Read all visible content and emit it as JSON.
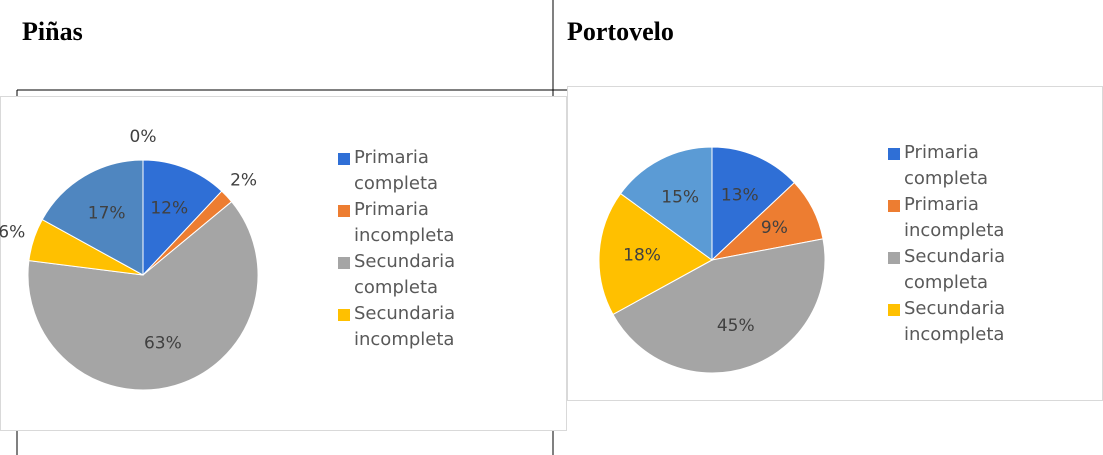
{
  "chart_data": [
    {
      "type": "pie",
      "title": "Piñas",
      "categories": [
        "Primaria completa",
        "Primaria incompleta",
        "Secundaria completa",
        "Secundaria incompleta",
        null,
        null
      ],
      "values": [
        12,
        2,
        63,
        6,
        17,
        0
      ],
      "value_labels": [
        "12%",
        "2%",
        "63%",
        "6%",
        "17%",
        "0%"
      ],
      "colors": [
        "#2f6fd6",
        "#ed7d31",
        "#a5a5a5",
        "#ffc000",
        "#4f86c0",
        "#264478"
      ]
    },
    {
      "type": "pie",
      "title": "Portovelo",
      "categories": [
        "Primaria completa",
        "Primaria incompleta",
        "Secundaria completa",
        "Secundaria incompleta",
        null
      ],
      "values": [
        13,
        9,
        45,
        18,
        15
      ],
      "value_labels": [
        "13%",
        "9%",
        "45%",
        "18%",
        "15%"
      ],
      "colors": [
        "#2f6fd6",
        "#ed7d31",
        "#a5a5a5",
        "#ffc000",
        "#5b9bd5"
      ]
    }
  ]
}
